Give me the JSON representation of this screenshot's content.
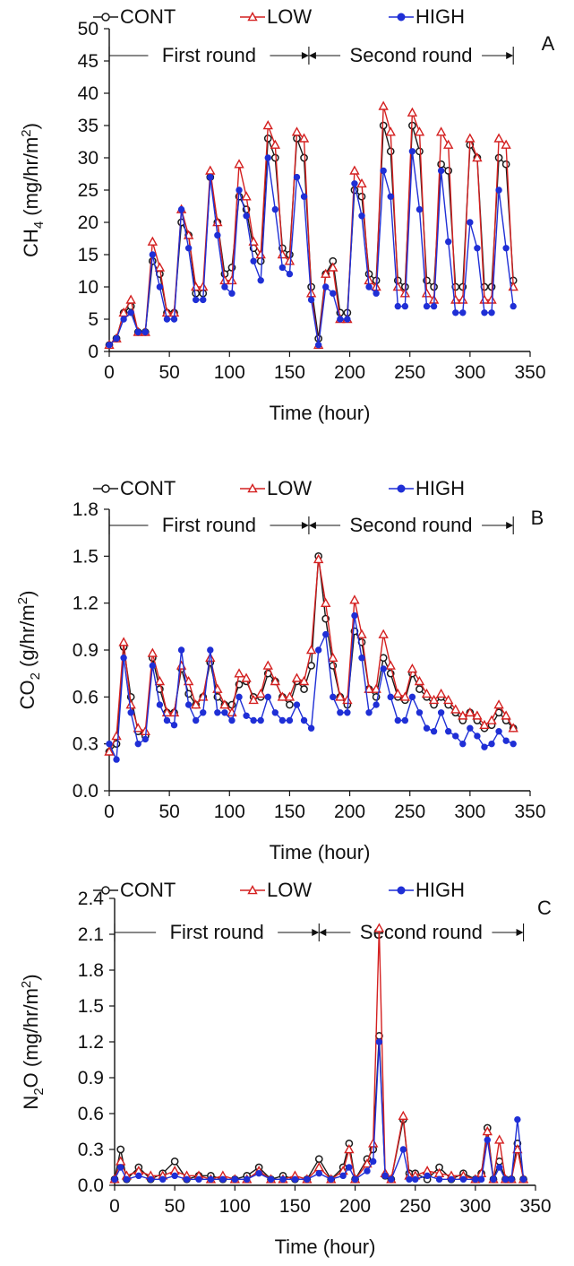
{
  "series_meta": [
    {
      "name": "CONT",
      "color": "#1a1a1a",
      "marker": "circle"
    },
    {
      "name": "LOW",
      "color": "#d42020",
      "marker": "triangle"
    },
    {
      "name": "HIGH",
      "color": "#1f2fd6",
      "marker": "dot"
    }
  ],
  "chart_data": [
    {
      "type": "line",
      "panel_label": "A",
      "xlabel": "Time (hour)",
      "ylabel": "CH4 (mg/hr/m2)",
      "ylabel_parts": {
        "main": "CH",
        "sub": "4",
        "rest": " (mg/hr/m",
        "sup": "2",
        "end": ")"
      },
      "xlim": [
        0,
        350
      ],
      "ylim": [
        0,
        50
      ],
      "xticks": [
        0,
        50,
        100,
        150,
        200,
        250,
        300,
        350
      ],
      "yticks": [
        0,
        5,
        10,
        15,
        20,
        25,
        30,
        35,
        40,
        45,
        50
      ],
      "rounds": {
        "first": "First round",
        "second": "Second round",
        "start": 0,
        "mid": 166,
        "end": 336
      },
      "legend": [
        "CONT",
        "LOW",
        "HIGH"
      ],
      "x": [
        0,
        6,
        12,
        18,
        24,
        30,
        36,
        42,
        48,
        54,
        60,
        66,
        72,
        78,
        84,
        90,
        96,
        102,
        108,
        114,
        120,
        126,
        132,
        138,
        144,
        150,
        156,
        162,
        168,
        174,
        180,
        186,
        192,
        198,
        204,
        210,
        216,
        222,
        228,
        234,
        240,
        246,
        252,
        258,
        264,
        270,
        276,
        282,
        288,
        294,
        300,
        306,
        312,
        318,
        324,
        330,
        336
      ],
      "series": [
        {
          "name": "CONT",
          "values": [
            1,
            2,
            6,
            7,
            3,
            3,
            14,
            12,
            6,
            6,
            20,
            18,
            9,
            9,
            27,
            20,
            12,
            13,
            24,
            22,
            16,
            14,
            33,
            30,
            16,
            15,
            33,
            30,
            10,
            2,
            12,
            14,
            6,
            6,
            25,
            24,
            12,
            11,
            35,
            31,
            11,
            10,
            35,
            31,
            11,
            10,
            29,
            28,
            10,
            10,
            32,
            30,
            10,
            10,
            30,
            29,
            11
          ]
        },
        {
          "name": "LOW",
          "values": [
            1,
            2,
            6,
            8,
            3,
            3,
            17,
            13,
            6,
            6,
            22,
            18,
            10,
            10,
            28,
            20,
            11,
            11,
            29,
            24,
            17,
            15,
            35,
            32,
            15,
            14,
            34,
            33,
            9,
            1,
            12,
            13,
            5,
            5,
            28,
            26,
            11,
            10,
            38,
            34,
            10,
            9,
            37,
            34,
            9,
            8,
            34,
            32,
            8,
            8,
            33,
            30,
            8,
            8,
            33,
            32,
            10
          ]
        },
        {
          "name": "HIGH",
          "values": [
            1,
            2,
            5,
            6,
            3,
            3,
            15,
            10,
            5,
            5,
            22,
            16,
            8,
            8,
            27,
            18,
            10,
            9,
            25,
            21,
            14,
            11,
            30,
            22,
            13,
            12,
            27,
            24,
            8,
            1,
            10,
            9,
            5,
            5,
            26,
            21,
            10,
            9,
            28,
            24,
            7,
            7,
            31,
            22,
            7,
            7,
            28,
            17,
            6,
            6,
            20,
            16,
            6,
            6,
            25,
            16,
            7
          ]
        }
      ]
    },
    {
      "type": "line",
      "panel_label": "B",
      "xlabel": "Time (hour)",
      "ylabel": "CO2 (g/hr/m2)",
      "ylabel_parts": {
        "main": "CO",
        "sub": "2",
        "rest": " (g/hr/m",
        "sup": "2",
        "end": ")"
      },
      "xlim": [
        0,
        350
      ],
      "ylim": [
        0,
        1.8
      ],
      "xticks": [
        0,
        50,
        100,
        150,
        200,
        250,
        300,
        350
      ],
      "yticks": [
        "0.0",
        "0.3",
        "0.6",
        "0.9",
        "1.2",
        "1.5",
        "1.8"
      ],
      "rounds": {
        "first": "First round",
        "second": "Second round",
        "start": 0,
        "mid": 166,
        "end": 336
      },
      "legend": [
        "CONT",
        "LOW",
        "HIGH"
      ],
      "x": [
        0,
        6,
        12,
        18,
        24,
        30,
        36,
        42,
        48,
        54,
        60,
        66,
        72,
        78,
        84,
        90,
        96,
        102,
        108,
        114,
        120,
        126,
        132,
        138,
        144,
        150,
        156,
        162,
        168,
        174,
        180,
        186,
        192,
        198,
        204,
        210,
        216,
        222,
        228,
        234,
        240,
        246,
        252,
        258,
        264,
        270,
        276,
        282,
        288,
        294,
        300,
        306,
        312,
        318,
        324,
        330,
        336
      ],
      "series": [
        {
          "name": "CONT",
          "values": [
            0.25,
            0.3,
            0.92,
            0.6,
            0.38,
            0.35,
            0.85,
            0.65,
            0.5,
            0.5,
            0.78,
            0.62,
            0.55,
            0.6,
            0.82,
            0.6,
            0.55,
            0.55,
            0.68,
            0.7,
            0.6,
            0.6,
            0.75,
            0.7,
            0.6,
            0.55,
            0.7,
            0.65,
            0.8,
            1.5,
            1.1,
            0.8,
            0.6,
            0.55,
            1.02,
            0.95,
            0.65,
            0.6,
            0.85,
            0.75,
            0.6,
            0.58,
            0.75,
            0.65,
            0.6,
            0.55,
            0.6,
            0.55,
            0.5,
            0.45,
            0.5,
            0.45,
            0.4,
            0.42,
            0.5,
            0.45,
            0.4
          ]
        },
        {
          "name": "LOW",
          "values": [
            0.25,
            0.35,
            0.95,
            0.55,
            0.4,
            0.38,
            0.88,
            0.7,
            0.5,
            0.5,
            0.8,
            0.7,
            0.55,
            0.6,
            0.85,
            0.65,
            0.55,
            0.5,
            0.75,
            0.72,
            0.58,
            0.62,
            0.8,
            0.7,
            0.6,
            0.6,
            0.72,
            0.7,
            0.9,
            1.48,
            1.2,
            0.85,
            0.6,
            0.58,
            1.22,
            1.0,
            0.65,
            0.65,
            1.0,
            0.8,
            0.62,
            0.6,
            0.78,
            0.7,
            0.62,
            0.58,
            0.62,
            0.58,
            0.52,
            0.48,
            0.5,
            0.48,
            0.42,
            0.45,
            0.55,
            0.48,
            0.4
          ]
        },
        {
          "name": "HIGH",
          "values": [
            0.3,
            0.2,
            0.85,
            0.5,
            0.3,
            0.33,
            0.8,
            0.55,
            0.45,
            0.42,
            0.9,
            0.55,
            0.45,
            0.5,
            0.9,
            0.5,
            0.5,
            0.45,
            0.6,
            0.48,
            0.45,
            0.45,
            0.6,
            0.5,
            0.45,
            0.45,
            0.55,
            0.45,
            0.4,
            0.9,
            1.0,
            0.6,
            0.5,
            0.5,
            1.12,
            0.85,
            0.5,
            0.55,
            0.78,
            0.6,
            0.45,
            0.45,
            0.6,
            0.5,
            0.4,
            0.38,
            0.5,
            0.38,
            0.35,
            0.3,
            0.4,
            0.35,
            0.28,
            0.3,
            0.38,
            0.32,
            0.3
          ]
        }
      ]
    },
    {
      "type": "line",
      "panel_label": "C",
      "xlabel": "Time (hour)",
      "ylabel": "N2O (mg/hr/m2)",
      "ylabel_parts": {
        "main": "N",
        "sub": "2",
        "rest": "O  (mg/hr/m",
        "sup": "2",
        "end": ")"
      },
      "xlim": [
        0,
        350
      ],
      "ylim": [
        0,
        2.4
      ],
      "xticks": [
        0,
        50,
        100,
        150,
        200,
        250,
        300,
        350
      ],
      "yticks": [
        "0.0",
        "0.3",
        "0.6",
        "0.9",
        "1.2",
        "1.5",
        "1.8",
        "2.1",
        "2.4"
      ],
      "rounds": {
        "first": "First round",
        "second": "Second round",
        "start": 0,
        "mid": 170,
        "end": 340
      },
      "legend": [
        "CONT",
        "LOW",
        "HIGH"
      ],
      "x": [
        0,
        5,
        10,
        20,
        30,
        40,
        50,
        60,
        70,
        80,
        90,
        100,
        110,
        120,
        130,
        140,
        150,
        160,
        170,
        180,
        190,
        195,
        200,
        210,
        215,
        220,
        225,
        230,
        240,
        245,
        250,
        260,
        270,
        280,
        290,
        300,
        305,
        310,
        315,
        320,
        325,
        330,
        335,
        340
      ],
      "series": [
        {
          "name": "CONT",
          "values": [
            0.05,
            0.3,
            0.05,
            0.15,
            0.05,
            0.1,
            0.2,
            0.05,
            0.08,
            0.08,
            0.05,
            0.05,
            0.08,
            0.15,
            0.05,
            0.08,
            0.05,
            0.05,
            0.22,
            0.05,
            0.15,
            0.35,
            0.05,
            0.22,
            0.3,
            1.25,
            0.08,
            0.05,
            0.55,
            0.1,
            0.1,
            0.05,
            0.15,
            0.05,
            0.1,
            0.05,
            0.1,
            0.48,
            0.05,
            0.2,
            0.05,
            0.05,
            0.35,
            0.05
          ]
        },
        {
          "name": "LOW",
          "values": [
            0.05,
            0.2,
            0.08,
            0.12,
            0.08,
            0.08,
            0.12,
            0.08,
            0.08,
            0.05,
            0.08,
            0.05,
            0.05,
            0.12,
            0.05,
            0.05,
            0.08,
            0.05,
            0.15,
            0.05,
            0.12,
            0.3,
            0.05,
            0.18,
            0.35,
            2.15,
            0.1,
            0.05,
            0.58,
            0.08,
            0.08,
            0.12,
            0.1,
            0.08,
            0.08,
            0.05,
            0.1,
            0.45,
            0.05,
            0.38,
            0.05,
            0.05,
            0.3,
            0.05
          ]
        },
        {
          "name": "HIGH",
          "values": [
            0.05,
            0.15,
            0.05,
            0.08,
            0.05,
            0.05,
            0.08,
            0.05,
            0.05,
            0.05,
            0.05,
            0.05,
            0.05,
            0.1,
            0.05,
            0.05,
            0.05,
            0.05,
            0.1,
            0.05,
            0.08,
            0.15,
            0.05,
            0.12,
            0.2,
            1.2,
            0.08,
            0.05,
            0.3,
            0.05,
            0.05,
            0.08,
            0.05,
            0.05,
            0.05,
            0.05,
            0.05,
            0.38,
            0.05,
            0.15,
            0.05,
            0.05,
            0.55,
            0.05
          ]
        }
      ]
    }
  ]
}
